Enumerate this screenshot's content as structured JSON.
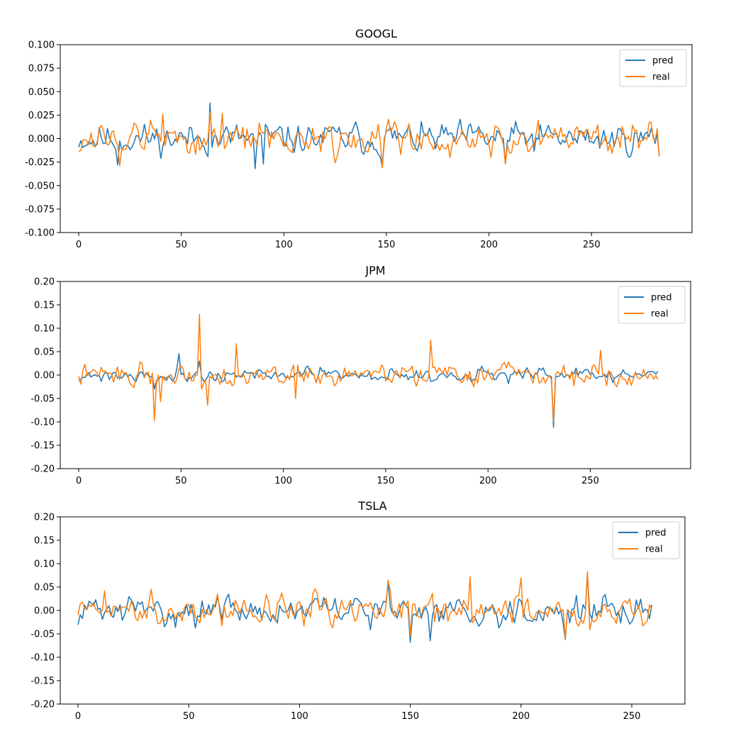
{
  "chart_data": [
    {
      "type": "line",
      "title": "GOOGL",
      "xlabel": "",
      "ylabel": "",
      "xlim": [
        -9,
        299
      ],
      "ylim": [
        -0.1,
        0.1
      ],
      "xticks": [
        0,
        50,
        100,
        150,
        200,
        250
      ],
      "xtick_labels": [
        "0",
        "50",
        "100",
        "150",
        "200",
        "250"
      ],
      "yticks": [
        -0.1,
        -0.075,
        -0.05,
        -0.025,
        0.0,
        0.025,
        0.05,
        0.075,
        0.1
      ],
      "ytick_labels": [
        "-0.100",
        "-0.075",
        "-0.050",
        "-0.025",
        "0.000",
        "0.025",
        "0.050",
        "0.075",
        "0.100"
      ],
      "grid": false,
      "legend": "top-right",
      "series": [
        {
          "name": "pred",
          "color": "#1f77b4",
          "n": 284,
          "amp": 0.009,
          "seed": 11,
          "spikes": [
            [
              64,
              0.038
            ],
            [
              86,
              -0.032
            ],
            [
              90,
              -0.027
            ],
            [
              148,
              -0.03
            ],
            [
              19,
              -0.028
            ],
            [
              208,
              -0.026
            ],
            [
              283,
              -0.018
            ]
          ]
        },
        {
          "name": "real",
          "color": "#ff7f0e",
          "n": 284,
          "amp": 0.01,
          "seed": 12,
          "spikes": [
            [
              64,
              0.028
            ],
            [
              20,
              -0.029
            ],
            [
              41,
              0.026
            ],
            [
              70,
              0.027
            ],
            [
              148,
              -0.031
            ],
            [
              208,
              -0.027
            ],
            [
              283,
              -0.019
            ]
          ]
        }
      ]
    },
    {
      "type": "line",
      "title": "JPM",
      "xlabel": "",
      "ylabel": "",
      "xlim": [
        -9,
        299
      ],
      "ylim": [
        -0.2,
        0.2
      ],
      "xticks": [
        0,
        50,
        100,
        150,
        200,
        250
      ],
      "xtick_labels": [
        "0",
        "50",
        "100",
        "150",
        "200",
        "250"
      ],
      "yticks": [
        -0.2,
        -0.15,
        -0.1,
        -0.05,
        0.0,
        0.05,
        0.1,
        0.15,
        0.2
      ],
      "ytick_labels": [
        "-0.20",
        "-0.15",
        "-0.10",
        "-0.05",
        "0.00",
        "0.05",
        "0.10",
        "0.15",
        "0.20"
      ],
      "grid": false,
      "legend": "top-right",
      "series": [
        {
          "name": "pred",
          "color": "#1f77b4",
          "n": 284,
          "amp": 0.008,
          "seed": 21,
          "spikes": [
            [
              49,
              0.046
            ],
            [
              232,
              -0.112
            ],
            [
              37,
              -0.03
            ],
            [
              59,
              0.03
            ]
          ]
        },
        {
          "name": "real",
          "color": "#ff7f0e",
          "n": 284,
          "amp": 0.013,
          "seed": 22,
          "spikes": [
            [
              59,
              0.13
            ],
            [
              37,
              -0.097
            ],
            [
              63,
              -0.065
            ],
            [
              77,
              0.067
            ],
            [
              40,
              -0.057
            ],
            [
              106,
              -0.05
            ],
            [
              172,
              0.075
            ],
            [
              232,
              -0.1
            ],
            [
              255,
              0.053
            ]
          ]
        }
      ]
    },
    {
      "type": "line",
      "title": "TSLA",
      "xlabel": "",
      "ylabel": "",
      "xlim": [
        -8,
        274
      ],
      "ylim": [
        -0.2,
        0.2
      ],
      "xticks": [
        0,
        50,
        100,
        150,
        200,
        250
      ],
      "xtick_labels": [
        "0",
        "50",
        "100",
        "150",
        "200",
        "250"
      ],
      "yticks": [
        -0.2,
        -0.15,
        -0.1,
        -0.05,
        0.0,
        0.05,
        0.1,
        0.15,
        0.2
      ],
      "ytick_labels": [
        "-0.20",
        "-0.15",
        "-0.10",
        "-0.05",
        "0.00",
        "0.05",
        "0.10",
        "0.15",
        "0.20"
      ],
      "grid": false,
      "legend": "top-right",
      "series": [
        {
          "name": "pred",
          "color": "#1f77b4",
          "n": 260,
          "amp": 0.017,
          "seed": 31,
          "spikes": [
            [
              150,
              -0.068
            ],
            [
              159,
              -0.065
            ],
            [
              220,
              -0.062
            ],
            [
              140,
              0.06
            ],
            [
              230,
              0.078
            ]
          ]
        },
        {
          "name": "real",
          "color": "#ff7f0e",
          "n": 260,
          "amp": 0.019,
          "seed": 32,
          "spikes": [
            [
              230,
              0.083
            ],
            [
              177,
              0.072
            ],
            [
              200,
              0.07
            ],
            [
              140,
              0.065
            ],
            [
              150,
              -0.055
            ],
            [
              220,
              -0.06
            ],
            [
              12,
              0.042
            ],
            [
              33,
              0.045
            ]
          ]
        }
      ]
    }
  ]
}
